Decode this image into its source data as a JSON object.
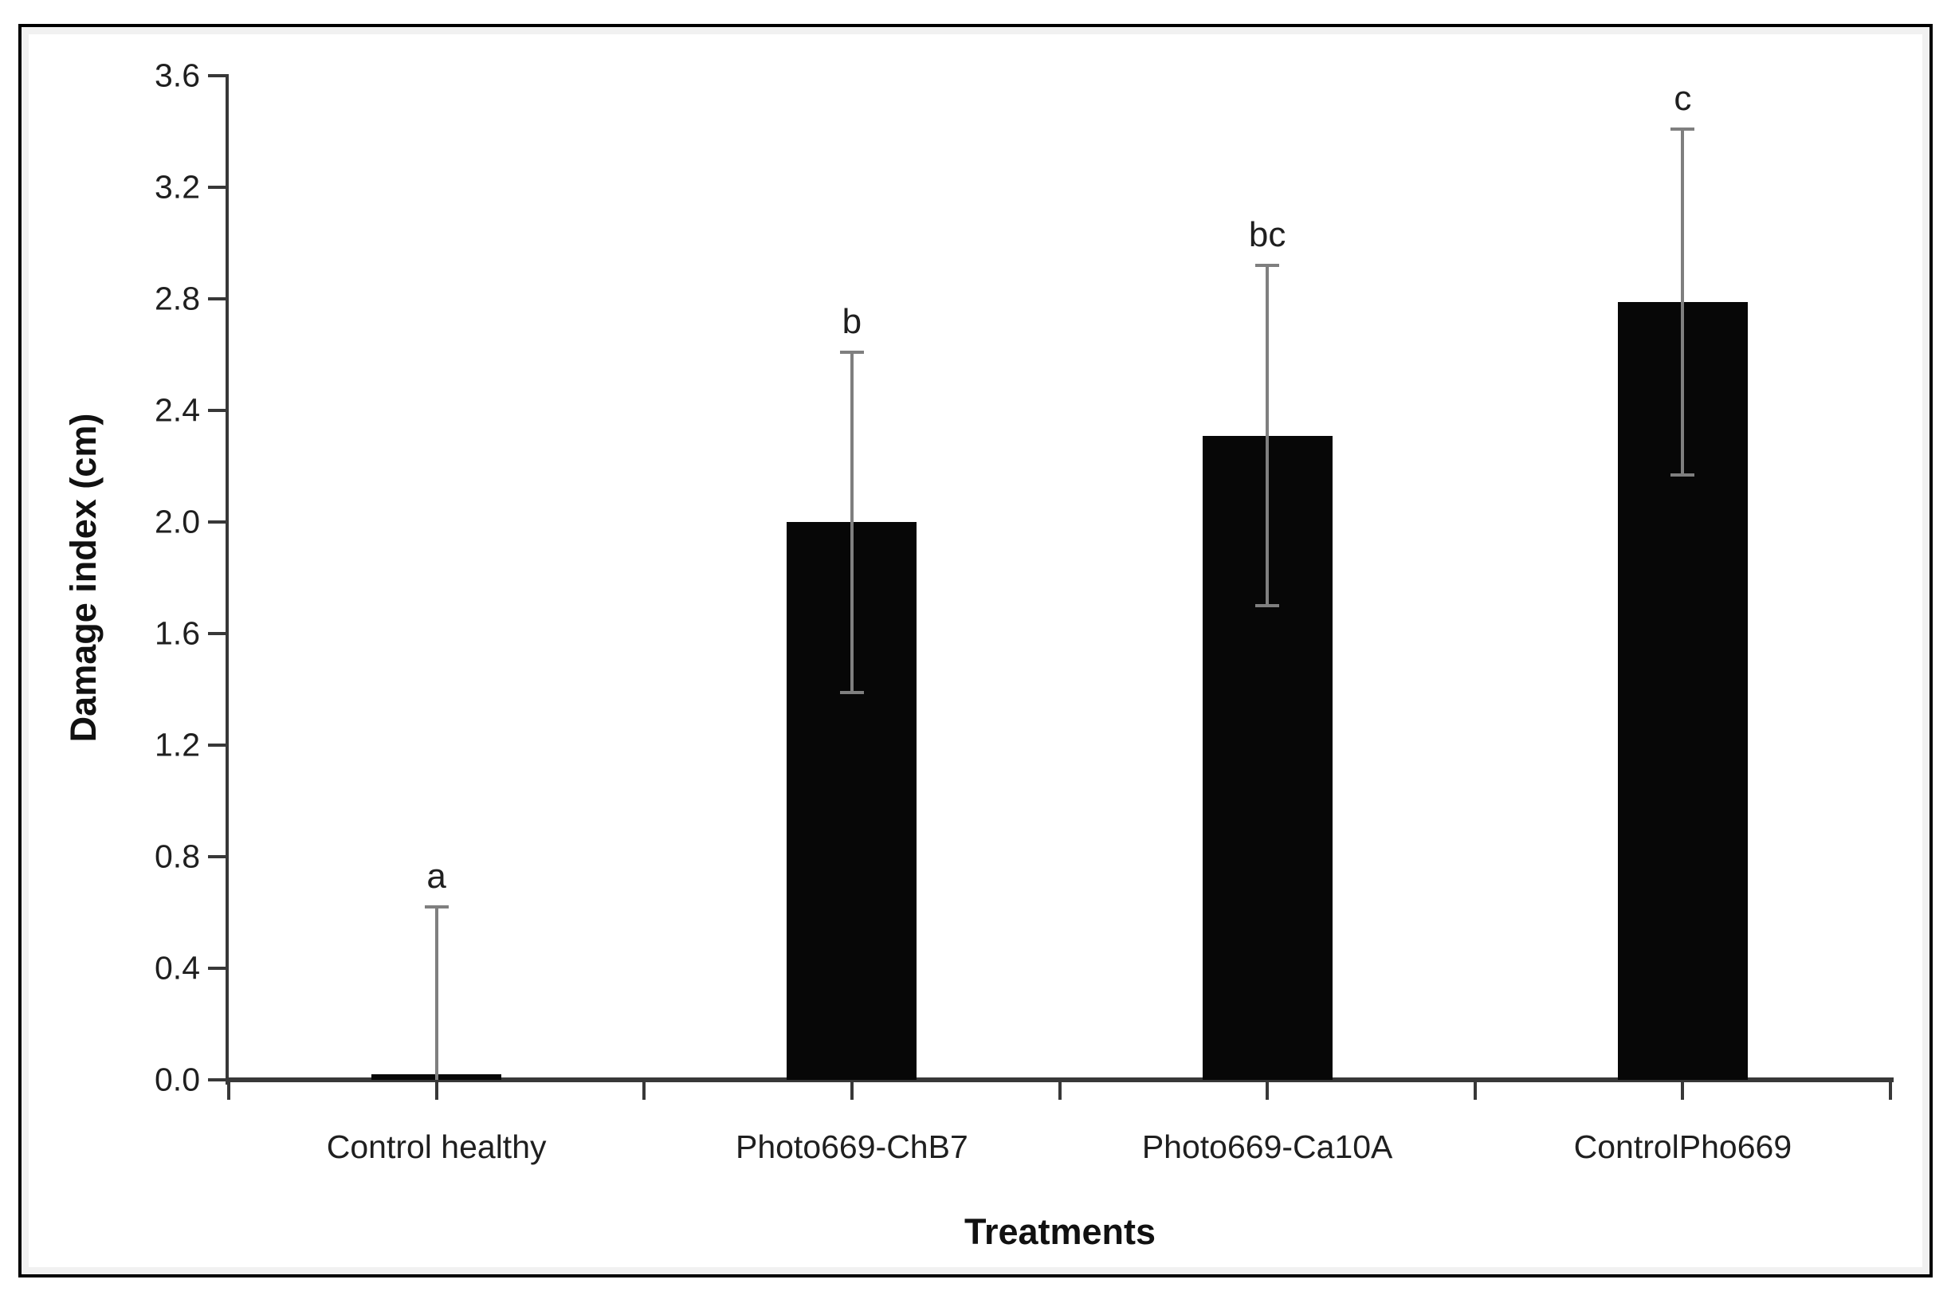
{
  "chart_data": {
    "type": "bar",
    "title": "",
    "categories": [
      "Control healthy",
      "Photo669-ChB7",
      "Photo669-Ca10A",
      "ControlPho669"
    ],
    "values": [
      0.02,
      2.0,
      2.31,
      2.79
    ],
    "errors": [
      0.6,
      0.61,
      0.61,
      0.62
    ],
    "sig_letters": [
      "a",
      "b",
      "bc",
      "c"
    ],
    "xlabel": "Treatments",
    "ylabel": "Damage index (cm)",
    "ylim": [
      0,
      3.6
    ],
    "ytick_step": 0.4,
    "ytick_labels": [
      "0.0",
      "0.4",
      "0.8",
      "1.2",
      "1.6",
      "2.0",
      "2.4",
      "2.8",
      "3.2",
      "3.6"
    ],
    "legend": null,
    "grid": false,
    "bar_color": "#070707",
    "error_bar_color": "#7f7f7f",
    "axis_color": "#383838",
    "frame_color": "#000000",
    "background_color": "#ffffff"
  }
}
